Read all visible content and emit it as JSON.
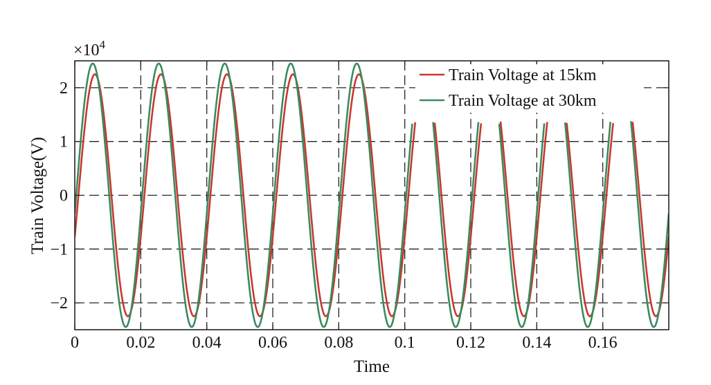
{
  "chart_data": {
    "type": "line",
    "title": "",
    "xlabel": "Time",
    "ylabel": "Train Voltage(V)",
    "y_multiplier_label": "×10",
    "y_multiplier_exponent": "4",
    "xlim": [
      0,
      0.18
    ],
    "ylim": [
      -25000,
      25000
    ],
    "x_ticks": [
      0,
      0.02,
      0.04,
      0.06,
      0.08,
      0.1,
      0.12,
      0.14,
      0.16
    ],
    "x_tick_labels": [
      "0",
      "0.02",
      "0.04",
      "0.06",
      "0.08",
      "0.1",
      "0.12",
      "0.14",
      "0.16"
    ],
    "y_ticks": [
      -20000,
      -10000,
      0,
      10000,
      20000
    ],
    "y_tick_labels": [
      "−2",
      "−1",
      "0",
      "1",
      "2"
    ],
    "grid": true,
    "legend_position": "top-right",
    "frequency_hz": 50,
    "clip_after_x": 0.1,
    "clip_level": 13800,
    "series": [
      {
        "name": "Train Voltage at 15km",
        "color": "#c8382e",
        "amplitude": 22500,
        "phase_deg": -20
      },
      {
        "name": "Train Voltage at 30km",
        "color": "#3a8a5f",
        "amplitude": 24500,
        "phase_deg": -8
      }
    ]
  }
}
